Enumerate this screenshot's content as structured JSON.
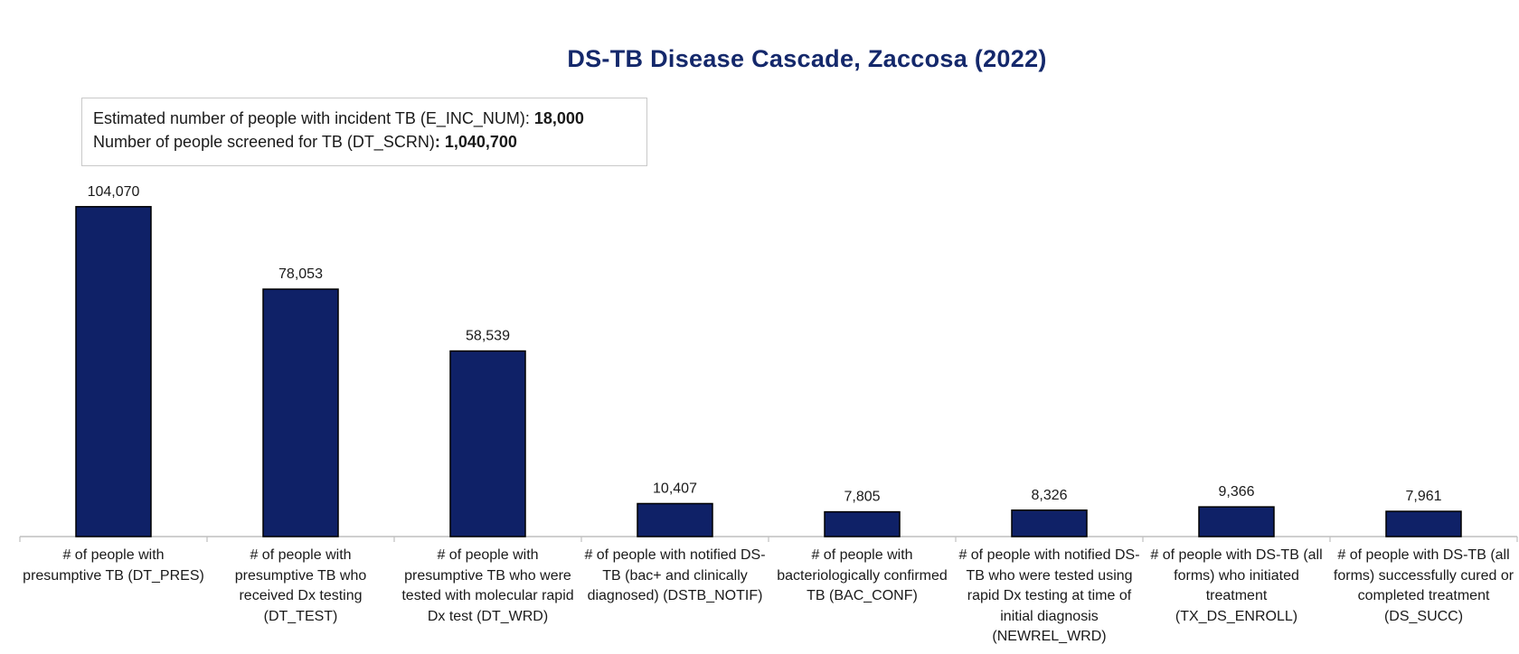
{
  "chart_data": {
    "type": "bar",
    "title": "DS-TB Disease Cascade, Zaccosa (2022)",
    "categories": [
      "# of people with presumptive TB (DT_PRES)",
      "# of people with presumptive TB who received Dx testing (DT_TEST)",
      "# of people with presumptive TB who were tested with molecular rapid Dx test (DT_WRD)",
      "# of people with notified DS-TB (bac+ and clinically diagnosed) (DSTB_NOTIF)",
      "# of people with bacteriologically confirmed TB (BAC_CONF)",
      "# of people with notified DS-TB who were tested using rapid Dx testing at time of initial diagnosis (NEWREL_WRD)",
      "# of people with DS-TB (all forms) who initiated treatment (TX_DS_ENROLL)",
      "# of people with DS-TB (all forms) successfully cured or completed treatment (DS_SUCC)"
    ],
    "values": [
      104070,
      78053,
      58539,
      10407,
      7805,
      8326,
      9366,
      7961
    ],
    "value_labels": [
      "104,070",
      "78,053",
      "58,539",
      "10,407",
      "7,805",
      "8,326",
      "9,366",
      "7,961"
    ],
    "xlabel": "",
    "ylabel": "",
    "ylim": [
      0,
      110000
    ],
    "grid": false,
    "legend": "none",
    "bar_color": "#0f2167",
    "bar_border": "#000000"
  },
  "info_box": {
    "line1_label": "Estimated number of people with incident TB (E_INC_NUM):",
    "line1_value": "18,000",
    "line2_label": "Number of people screened for TB (DT_SCRN)",
    "line2_sep": ":",
    "line2_value": "1,040,700"
  }
}
